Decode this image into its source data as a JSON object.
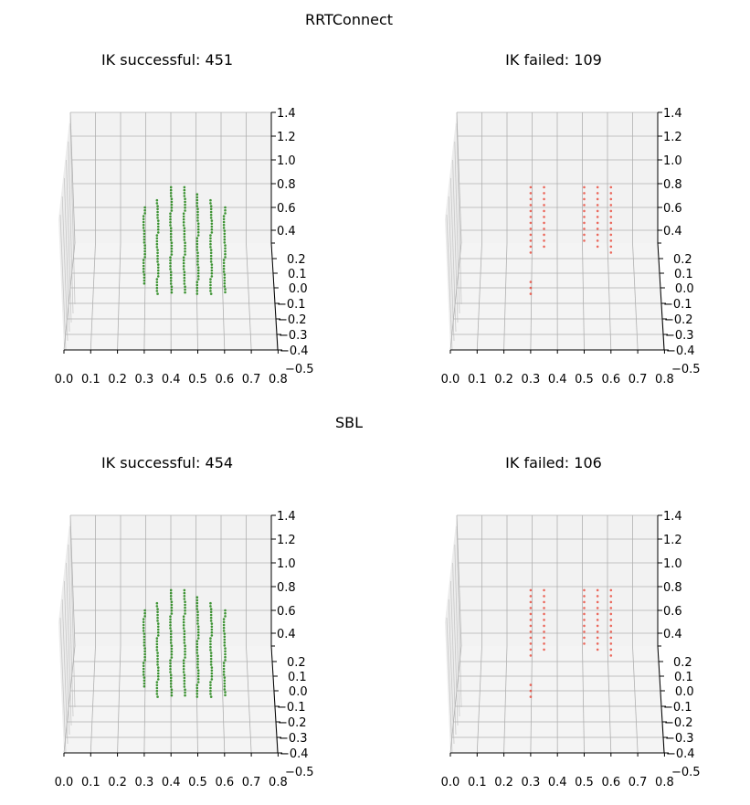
{
  "colors": {
    "success": "#2a8a1f",
    "failed": "#e8392a",
    "pane": "#f2f2f2",
    "grid": "#b0b0b0"
  },
  "chart_data": [
    {
      "type": "scatter3d",
      "suptitle": "RRTConnect",
      "title": "IK successful: 451",
      "series_color": "success",
      "x_ticks": [
        "0.0",
        "0.1",
        "0.2",
        "0.3",
        "0.4",
        "0.5",
        "0.6",
        "0.7",
        "0.8"
      ],
      "z_ticks": [
        "1.4",
        "1.2",
        "1.0",
        "0.8",
        "0.6",
        "0.4",
        "0.2",
        "0.1",
        "0.0",
        "−0.1",
        "−0.2",
        "−0.3",
        "−0.4",
        "−0.5"
      ],
      "columns": [
        {
          "x": 0.3,
          "z_min": 0.02,
          "z_max": 0.6
        },
        {
          "x": 0.35,
          "z_min": -0.04,
          "z_max": 0.66
        },
        {
          "x": 0.4,
          "z_min": -0.04,
          "z_max": 0.77
        },
        {
          "x": 0.45,
          "z_min": -0.04,
          "z_max": 0.77
        },
        {
          "x": 0.5,
          "z_min": -0.04,
          "z_max": 0.71
        },
        {
          "x": 0.55,
          "z_min": -0.04,
          "z_max": 0.66
        },
        {
          "x": 0.6,
          "z_min": -0.04,
          "z_max": 0.6
        }
      ]
    },
    {
      "type": "scatter3d",
      "title": "IK failed: 109",
      "series_color": "failed",
      "x_ticks": [
        "0.0",
        "0.1",
        "0.2",
        "0.3",
        "0.4",
        "0.5",
        "0.6",
        "0.7",
        "0.8"
      ],
      "z_ticks": [
        "1.4",
        "1.2",
        "1.0",
        "0.8",
        "0.6",
        "0.4",
        "0.2",
        "0.1",
        "0.0",
        "−0.1",
        "−0.2",
        "−0.3",
        "−0.4",
        "−0.5"
      ],
      "columns": [
        {
          "x": 0.3,
          "z_min": 0.22,
          "z_max": 0.77
        },
        {
          "x": 0.3,
          "z_min": -0.04,
          "z_max": 0.04
        },
        {
          "x": 0.35,
          "z_min": 0.27,
          "z_max": 0.77
        },
        {
          "x": 0.5,
          "z_min": 0.32,
          "z_max": 0.77
        },
        {
          "x": 0.55,
          "z_min": 0.27,
          "z_max": 0.77
        },
        {
          "x": 0.6,
          "z_min": 0.22,
          "z_max": 0.77
        }
      ]
    },
    {
      "type": "scatter3d",
      "suptitle": "SBL",
      "title": "IK successful: 454",
      "series_color": "success",
      "x_ticks": [
        "0.0",
        "0.1",
        "0.2",
        "0.3",
        "0.4",
        "0.5",
        "0.6",
        "0.7",
        "0.8"
      ],
      "z_ticks": [
        "1.4",
        "1.2",
        "1.0",
        "0.8",
        "0.6",
        "0.4",
        "0.2",
        "0.1",
        "0.0",
        "−0.1",
        "−0.2",
        "−0.3",
        "−0.4",
        "−0.5"
      ],
      "columns": [
        {
          "x": 0.3,
          "z_min": 0.02,
          "z_max": 0.6
        },
        {
          "x": 0.35,
          "z_min": -0.04,
          "z_max": 0.66
        },
        {
          "x": 0.4,
          "z_min": -0.04,
          "z_max": 0.77
        },
        {
          "x": 0.45,
          "z_min": -0.04,
          "z_max": 0.77
        },
        {
          "x": 0.5,
          "z_min": -0.04,
          "z_max": 0.71
        },
        {
          "x": 0.55,
          "z_min": -0.04,
          "z_max": 0.66
        },
        {
          "x": 0.6,
          "z_min": -0.04,
          "z_max": 0.6
        }
      ]
    },
    {
      "type": "scatter3d",
      "title": "IK failed: 106",
      "series_color": "failed",
      "x_ticks": [
        "0.0",
        "0.1",
        "0.2",
        "0.3",
        "0.4",
        "0.5",
        "0.6",
        "0.7",
        "0.8"
      ],
      "z_ticks": [
        "1.4",
        "1.2",
        "1.0",
        "0.8",
        "0.6",
        "0.4",
        "0.2",
        "0.1",
        "0.0",
        "−0.1",
        "−0.2",
        "−0.3",
        "−0.4",
        "−0.5"
      ],
      "columns": [
        {
          "x": 0.3,
          "z_min": 0.22,
          "z_max": 0.77
        },
        {
          "x": 0.3,
          "z_min": -0.04,
          "z_max": 0.04
        },
        {
          "x": 0.35,
          "z_min": 0.27,
          "z_max": 0.77
        },
        {
          "x": 0.5,
          "z_min": 0.32,
          "z_max": 0.77
        },
        {
          "x": 0.55,
          "z_min": 0.27,
          "z_max": 0.77
        },
        {
          "x": 0.6,
          "z_min": 0.22,
          "z_max": 0.77
        }
      ]
    }
  ]
}
